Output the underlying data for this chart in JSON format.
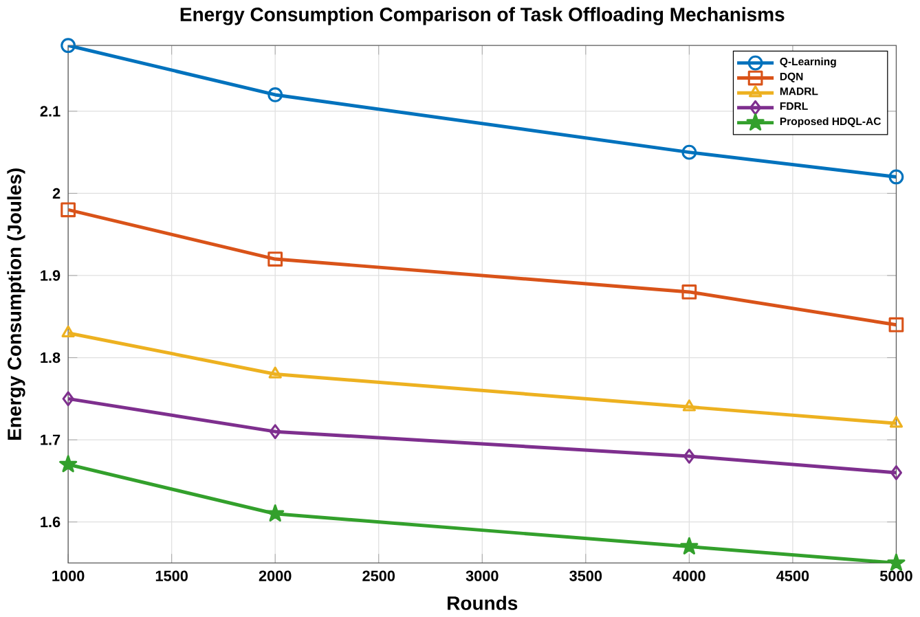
{
  "chart_data": {
    "type": "line",
    "title": "Energy Consumption Comparison of Task Offloading Mechanisms",
    "xlabel": "Rounds",
    "ylabel": "Energy Consumption (Joules)",
    "x": [
      1000,
      2000,
      4000,
      5000
    ],
    "series": [
      {
        "name": "Q-Learning",
        "color": "#0072bd",
        "marker": "circle",
        "values": [
          2.18,
          2.12,
          2.05,
          2.02
        ]
      },
      {
        "name": "DQN",
        "color": "#d95319",
        "marker": "square",
        "values": [
          1.98,
          1.92,
          1.88,
          1.84
        ]
      },
      {
        "name": "MADRL",
        "color": "#edb120",
        "marker": "triangle",
        "values": [
          1.83,
          1.78,
          1.74,
          1.72
        ]
      },
      {
        "name": "FDRL",
        "color": "#7e2f8e",
        "marker": "diamond",
        "values": [
          1.75,
          1.71,
          1.68,
          1.66
        ]
      },
      {
        "name": "Proposed HDQL-AC",
        "color": "#33a02c",
        "marker": "star",
        "values": [
          1.67,
          1.61,
          1.57,
          1.55
        ]
      }
    ],
    "xlim": [
      1000,
      5000
    ],
    "ylim": [
      1.55,
      2.18
    ],
    "xticks": [
      1000,
      1500,
      2000,
      2500,
      3000,
      3500,
      4000,
      4500,
      5000
    ],
    "yticks": [
      1.6,
      1.7,
      1.8,
      1.9,
      2,
      2.1
    ],
    "grid": true,
    "legend": "top right",
    "line_style": "solid"
  }
}
